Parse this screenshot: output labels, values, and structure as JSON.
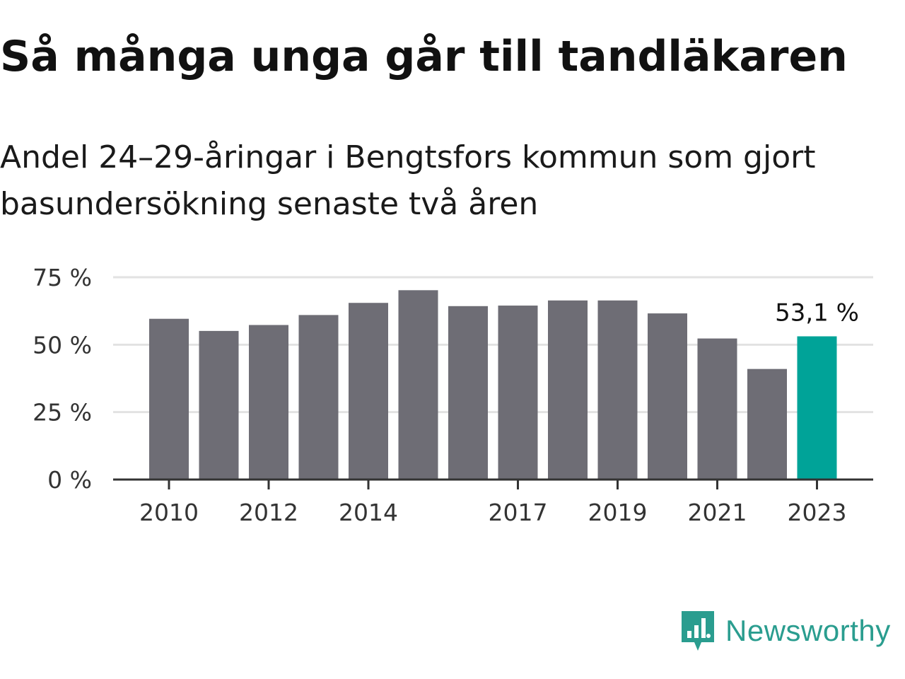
{
  "chart_data": {
    "type": "bar",
    "title": "Så många unga går till tandläkaren",
    "subtitle": "Andel 24–29-åringar i Bengtsfors kommun som gjort basundersökning senaste två åren",
    "categories": [
      "2010",
      "2011",
      "2012",
      "2013",
      "2014",
      "2015",
      "2016",
      "2017",
      "2018",
      "2019",
      "2020",
      "2021",
      "2022",
      "2023"
    ],
    "values": [
      59.6,
      55.1,
      57.3,
      61.0,
      65.5,
      70.2,
      64.3,
      64.5,
      66.4,
      66.4,
      61.6,
      52.3,
      41.0,
      53.1
    ],
    "xtick_labels": [
      "2010",
      "2012",
      "2014",
      "2017",
      "2019",
      "2021",
      "2023"
    ],
    "yticks": [
      0,
      25,
      50,
      75
    ],
    "ytick_labels": [
      "0 %",
      "25 %",
      "50 %",
      "75 %"
    ],
    "ylim": [
      0,
      75
    ],
    "xlabel": "",
    "ylabel": "",
    "highlight_index": 13,
    "highlight_label": "53,1 %",
    "grid": true,
    "colors": {
      "bar": "#6e6d75",
      "highlight": "#00a398",
      "grid": "#e2e2e2",
      "axis": "#333333"
    }
  },
  "brand": {
    "name": "Newsworthy",
    "icon": "newsworthy-logo-icon",
    "color": "#2a9d8f"
  }
}
